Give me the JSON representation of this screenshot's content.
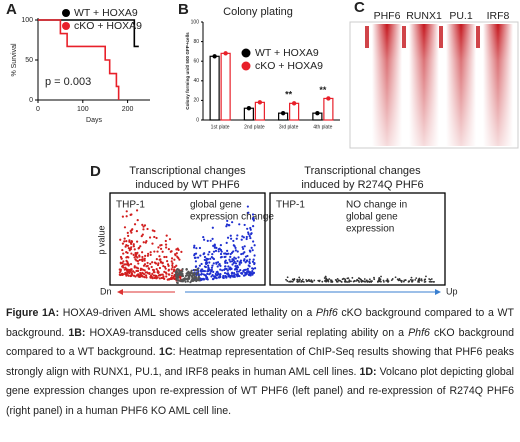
{
  "chart_data": [
    {
      "type": "line",
      "panel_label": "A",
      "ylabel": "% Survival",
      "xlabel": "Days",
      "xlim": [
        0,
        250
      ],
      "xticks": [
        0,
        100,
        200
      ],
      "ylim": [
        0,
        100
      ],
      "yticks": [
        0,
        50,
        100
      ],
      "annotation": "p = 0.003",
      "series": [
        {
          "name": "WT + HOXA9",
          "color": "#000000",
          "x": [
            0,
            215,
            215,
            225
          ],
          "values": [
            100,
            100,
            67,
            67
          ]
        },
        {
          "name": "cKO + HOXA9",
          "color": "#e8202a",
          "x": [
            0,
            50,
            50,
            65,
            65,
            150,
            150,
            160,
            160,
            175,
            175,
            180,
            180
          ],
          "values": [
            100,
            100,
            83,
            83,
            67,
            67,
            50,
            50,
            33,
            33,
            17,
            17,
            0
          ]
        }
      ]
    },
    {
      "type": "bar",
      "panel_label": "B",
      "title": "Colony plating",
      "ylabel": "Colony forming unit/ 500 GFP+cells",
      "ylim": [
        0,
        100
      ],
      "yticks": [
        0,
        20,
        40,
        60,
        80,
        100
      ],
      "categories": [
        "1st plate",
        "2nd plate",
        "3rd plate",
        "4th plate"
      ],
      "series": [
        {
          "name": "WT + HOXA9",
          "color": "#000000",
          "values": [
            65,
            12,
            7,
            7
          ]
        },
        {
          "name": "cKO + HOXA9",
          "color": "#e8202a",
          "values": [
            68,
            18,
            17,
            22
          ]
        }
      ],
      "significance": [
        null,
        null,
        "**",
        "**"
      ]
    }
  ],
  "panel_c": {
    "panel_label": "C",
    "heatmaps": [
      "PHF6",
      "RUNX1",
      "PU.1",
      "IRF8"
    ]
  },
  "panel_d": {
    "panel_label": "D",
    "left": {
      "title": [
        "Transcriptional changes",
        "induced by WT PHF6"
      ],
      "cell_line": "THP-1",
      "note": [
        "global gene",
        "expression change"
      ]
    },
    "right": {
      "title": [
        "Transcriptional changes",
        "induced by R274Q PHF6"
      ],
      "cell_line": "THP-1",
      "note": [
        "NO change in",
        "global gene",
        "expression"
      ]
    },
    "ylabel": "p value",
    "down": "Dn",
    "up": "Up"
  },
  "caption": [
    {
      "text": "Figure 1A:",
      "bold": true
    },
    {
      "text": " HOXA9-driven AML shows accelerated lethality on a "
    },
    {
      "text": "Phf6",
      "italic": true
    },
    {
      "text": " cKO background compared to a WT background. "
    },
    {
      "text": "1B:",
      "bold": true
    },
    {
      "text": " HOXA9-transduced cells show greater serial replating ability on a "
    },
    {
      "text": "Phf6",
      "italic": true
    },
    {
      "text": " cKO background compared to a WT background. "
    },
    {
      "text": "1C",
      "bold": true
    },
    {
      "text": ": Heatmap representation of ChIP-Seq results showing that PHF6 peaks strongly align with RUNX1, PU.1, and IRF8 peaks in human AML cell lines. "
    },
    {
      "text": "1D:",
      "bold": true
    },
    {
      "text": " Volcano plot depicting global gene expression changes upon re-expression of WT PHF6 (left panel) and re-expression of R274Q PHF6 (right panel) in a human PHF6 KO AML cell line."
    }
  ]
}
